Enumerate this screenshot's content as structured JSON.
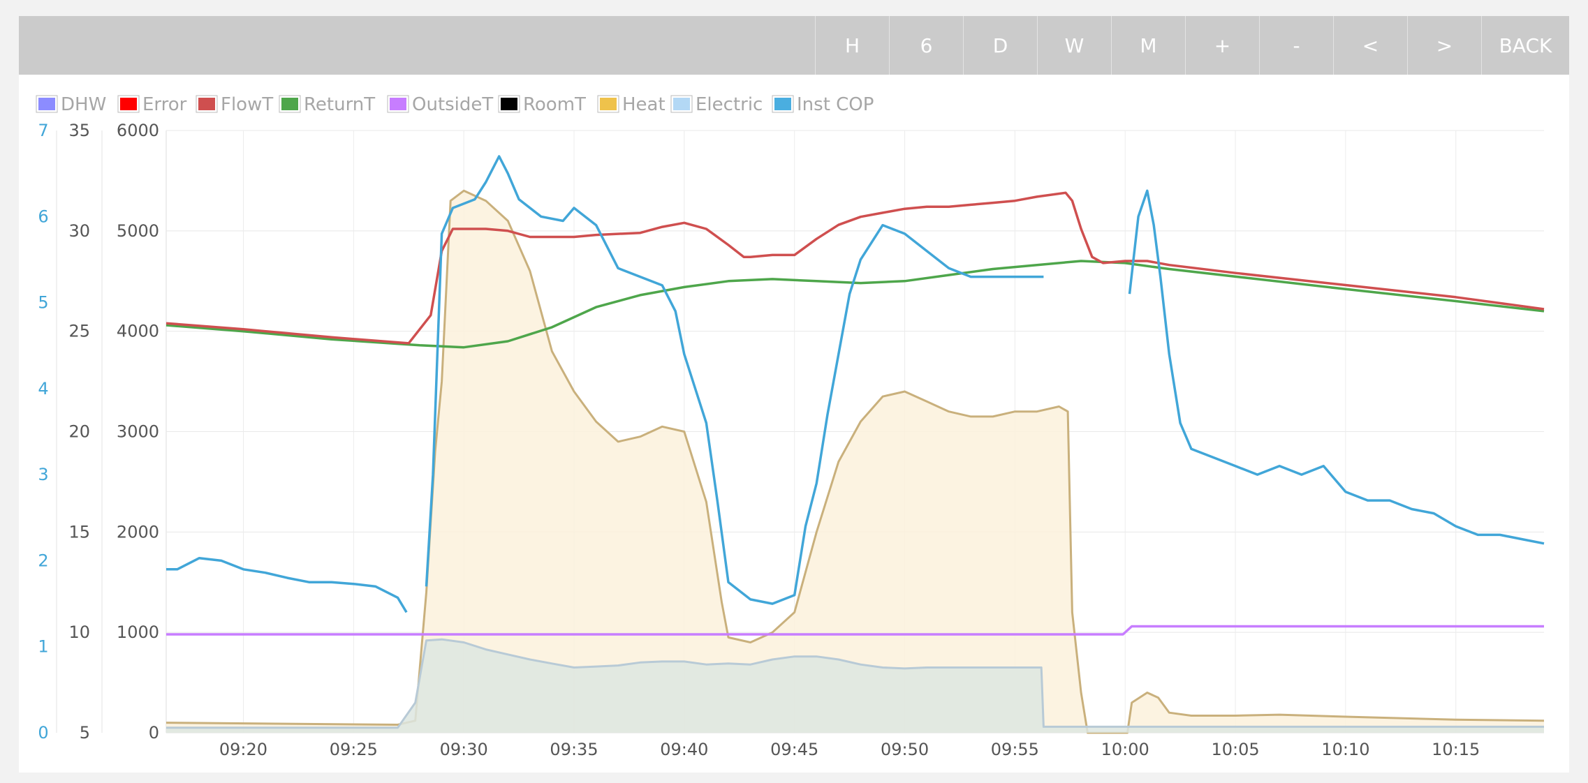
{
  "toolbar": {
    "buttons": [
      "H",
      "6",
      "D",
      "W",
      "M",
      "+",
      "-",
      "<",
      ">",
      "BACK"
    ]
  },
  "legend": [
    {
      "name": "DHW",
      "color": "#8c8cff"
    },
    {
      "name": "Error",
      "color": "#ff0000"
    },
    {
      "name": "FlowT",
      "color": "#cf4f4f"
    },
    {
      "name": "ReturnT",
      "color": "#4ea64b"
    },
    {
      "name": "OutsideT",
      "color": "#c77dff"
    },
    {
      "name": "RoomT",
      "color": "#000000"
    },
    {
      "name": "Heat",
      "color": "#efc24b"
    },
    {
      "name": "Electric",
      "color": "#b3d8f5"
    },
    {
      "name": "Inst COP",
      "color": "#4aaee0"
    }
  ],
  "chart_data": {
    "type": "line",
    "x_unit": "minutes after 09:00",
    "x_range": [
      16.5,
      79
    ],
    "x_ticks": [
      "09:20",
      "09:25",
      "09:30",
      "09:35",
      "09:40",
      "09:45",
      "09:50",
      "09:55",
      "10:00",
      "10:05",
      "10:10",
      "10:15"
    ],
    "axes": {
      "cop": {
        "range": [
          0,
          7
        ],
        "ticks": [
          "0",
          "1",
          "2",
          "3",
          "4",
          "5",
          "6",
          "7"
        ]
      },
      "temperature": {
        "range": [
          5,
          35
        ],
        "ticks": [
          "5",
          "10",
          "15",
          "20",
          "25",
          "30",
          "35"
        ]
      },
      "power": {
        "range": [
          0,
          6000
        ],
        "ticks": [
          "0",
          "1000",
          "2000",
          "3000",
          "4000",
          "5000",
          "6000"
        ]
      }
    },
    "grid": true,
    "legend_position": "top-left",
    "series": [
      {
        "name": "Heat",
        "axis": "power",
        "type": "area",
        "color": "#c9b07c",
        "fill": "#fbf1dc",
        "points": [
          [
            16.5,
            100
          ],
          [
            27,
            80
          ],
          [
            27.8,
            120
          ],
          [
            28.3,
            1400
          ],
          [
            28.7,
            2800
          ],
          [
            29,
            3500
          ],
          [
            29.4,
            5300
          ],
          [
            30,
            5400
          ],
          [
            31,
            5300
          ],
          [
            32,
            5100
          ],
          [
            33,
            4600
          ],
          [
            34,
            3800
          ],
          [
            35,
            3400
          ],
          [
            36,
            3100
          ],
          [
            37,
            2900
          ],
          [
            38,
            2950
          ],
          [
            39,
            3050
          ],
          [
            40,
            3000
          ],
          [
            41,
            2300
          ],
          [
            41.7,
            1300
          ],
          [
            42,
            950
          ],
          [
            43,
            900
          ],
          [
            44,
            1000
          ],
          [
            45,
            1200
          ],
          [
            46,
            2000
          ],
          [
            47,
            2700
          ],
          [
            48,
            3100
          ],
          [
            49,
            3350
          ],
          [
            50,
            3400
          ],
          [
            51,
            3300
          ],
          [
            52,
            3200
          ],
          [
            53,
            3150
          ],
          [
            54,
            3150
          ],
          [
            55,
            3200
          ],
          [
            56,
            3200
          ],
          [
            57,
            3250
          ],
          [
            57.4,
            3200
          ],
          [
            57.6,
            1200
          ],
          [
            58,
            400
          ],
          [
            58.3,
            0
          ],
          [
            60.1,
            0
          ],
          [
            60.3,
            300
          ],
          [
            61,
            400
          ],
          [
            61.5,
            350
          ],
          [
            62,
            200
          ],
          [
            63,
            170
          ],
          [
            65,
            170
          ],
          [
            67,
            180
          ],
          [
            70,
            160
          ],
          [
            75,
            130
          ],
          [
            79,
            120
          ]
        ]
      },
      {
        "name": "Electric",
        "axis": "power",
        "type": "area",
        "color": "#b8cad6",
        "fill": "#dde6e0",
        "points": [
          [
            16.5,
            50
          ],
          [
            27,
            50
          ],
          [
            27.8,
            300
          ],
          [
            28.3,
            920
          ],
          [
            29,
            930
          ],
          [
            30,
            900
          ],
          [
            31,
            830
          ],
          [
            32,
            780
          ],
          [
            33,
            730
          ],
          [
            34,
            690
          ],
          [
            35,
            650
          ],
          [
            36,
            660
          ],
          [
            37,
            670
          ],
          [
            38,
            700
          ],
          [
            39,
            710
          ],
          [
            40,
            710
          ],
          [
            41,
            680
          ],
          [
            42,
            690
          ],
          [
            43,
            680
          ],
          [
            44,
            730
          ],
          [
            45,
            760
          ],
          [
            46,
            760
          ],
          [
            47,
            730
          ],
          [
            48,
            680
          ],
          [
            49,
            650
          ],
          [
            50,
            640
          ],
          [
            51,
            650
          ],
          [
            52,
            650
          ],
          [
            53,
            650
          ],
          [
            54,
            650
          ],
          [
            55,
            650
          ],
          [
            56.2,
            650
          ],
          [
            56.3,
            60
          ],
          [
            60,
            60
          ],
          [
            79,
            60
          ]
        ]
      },
      {
        "name": "OutsideT",
        "axis": "temperature",
        "type": "line",
        "color": "#c77dff",
        "points": [
          [
            16.5,
            9.9
          ],
          [
            59.9,
            9.9
          ],
          [
            60.3,
            10.3
          ],
          [
            79,
            10.3
          ]
        ]
      },
      {
        "name": "ReturnT",
        "axis": "temperature",
        "type": "line",
        "color": "#4ea64b",
        "points": [
          [
            16.5,
            25.3
          ],
          [
            20,
            25
          ],
          [
            24,
            24.6
          ],
          [
            28,
            24.3
          ],
          [
            30,
            24.2
          ],
          [
            32,
            24.5
          ],
          [
            34,
            25.2
          ],
          [
            36,
            26.2
          ],
          [
            38,
            26.8
          ],
          [
            40,
            27.2
          ],
          [
            42,
            27.5
          ],
          [
            44,
            27.6
          ],
          [
            46,
            27.5
          ],
          [
            48,
            27.4
          ],
          [
            50,
            27.5
          ],
          [
            52,
            27.8
          ],
          [
            54,
            28.1
          ],
          [
            56,
            28.3
          ],
          [
            58,
            28.5
          ],
          [
            60,
            28.4
          ],
          [
            62,
            28.1
          ],
          [
            66,
            27.6
          ],
          [
            70,
            27.1
          ],
          [
            75,
            26.5
          ],
          [
            79,
            26
          ]
        ]
      },
      {
        "name": "FlowT",
        "axis": "temperature",
        "type": "line",
        "color": "#cf4f4f",
        "points": [
          [
            16.5,
            25.4
          ],
          [
            20,
            25.1
          ],
          [
            24,
            24.7
          ],
          [
            27.5,
            24.4
          ],
          [
            28.5,
            25.8
          ],
          [
            29,
            29
          ],
          [
            29.5,
            30.1
          ],
          [
            31,
            30.1
          ],
          [
            32,
            30
          ],
          [
            33,
            29.7
          ],
          [
            35,
            29.7
          ],
          [
            36,
            29.8
          ],
          [
            38,
            29.9
          ],
          [
            39,
            30.2
          ],
          [
            40,
            30.4
          ],
          [
            41,
            30.1
          ],
          [
            42,
            29.3
          ],
          [
            42.7,
            28.7
          ],
          [
            43,
            28.7
          ],
          [
            44,
            28.8
          ],
          [
            45,
            28.8
          ],
          [
            46,
            29.6
          ],
          [
            47,
            30.3
          ],
          [
            48,
            30.7
          ],
          [
            49,
            30.9
          ],
          [
            50,
            31.1
          ],
          [
            51,
            31.2
          ],
          [
            52,
            31.2
          ],
          [
            53,
            31.3
          ],
          [
            54,
            31.4
          ],
          [
            55,
            31.5
          ],
          [
            56,
            31.7
          ],
          [
            57.3,
            31.9
          ],
          [
            57.6,
            31.5
          ],
          [
            58,
            30.1
          ],
          [
            58.5,
            28.7
          ],
          [
            59,
            28.4
          ],
          [
            60,
            28.5
          ],
          [
            61,
            28.5
          ],
          [
            62,
            28.3
          ],
          [
            65,
            27.9
          ],
          [
            70,
            27.3
          ],
          [
            75,
            26.7
          ],
          [
            79,
            26.1
          ]
        ]
      },
      {
        "name": "Inst COP",
        "axis": "cop",
        "type": "line",
        "color": "#41a6d8",
        "segments": [
          [
            [
              16.5,
              1.9
            ],
            [
              17,
              1.9
            ],
            [
              18,
              2.03
            ],
            [
              19,
              2.0
            ],
            [
              20,
              1.9
            ],
            [
              21,
              1.86
            ],
            [
              22,
              1.8
            ],
            [
              23,
              1.75
            ],
            [
              24,
              1.75
            ],
            [
              25,
              1.73
            ],
            [
              26,
              1.7
            ],
            [
              27,
              1.57
            ],
            [
              27.4,
              1.4
            ]
          ],
          [
            [
              28.3,
              1.7
            ],
            [
              28.6,
              3.0
            ],
            [
              29,
              5.8
            ],
            [
              29.5,
              6.1
            ],
            [
              30.5,
              6.2
            ],
            [
              31,
              6.4
            ],
            [
              31.6,
              6.7
            ],
            [
              32,
              6.5
            ],
            [
              32.5,
              6.2
            ],
            [
              33.5,
              6.0
            ],
            [
              34.5,
              5.95
            ],
            [
              35,
              6.1
            ],
            [
              36,
              5.9
            ],
            [
              37,
              5.4
            ],
            [
              38,
              5.3
            ],
            [
              39,
              5.2
            ],
            [
              39.6,
              4.9
            ],
            [
              40,
              4.4
            ],
            [
              40.5,
              4.0
            ],
            [
              41,
              3.6
            ],
            [
              41.5,
              2.7
            ],
            [
              42,
              1.75
            ],
            [
              43,
              1.55
            ],
            [
              44,
              1.5
            ],
            [
              45,
              1.6
            ],
            [
              45.5,
              2.4
            ],
            [
              46,
              2.9
            ],
            [
              46.5,
              3.7
            ],
            [
              47,
              4.4
            ],
            [
              47.5,
              5.1
            ],
            [
              48,
              5.5
            ],
            [
              49,
              5.9
            ],
            [
              50,
              5.8
            ],
            [
              51,
              5.6
            ],
            [
              52,
              5.4
            ],
            [
              53,
              5.3
            ],
            [
              54,
              5.3
            ],
            [
              55,
              5.3
            ],
            [
              56.3,
              5.3
            ]
          ],
          [
            [
              60.2,
              5.1
            ],
            [
              60.6,
              6.0
            ],
            [
              61,
              6.3
            ],
            [
              61.3,
              5.9
            ],
            [
              61.6,
              5.3
            ],
            [
              62,
              4.4
            ],
            [
              62.5,
              3.6
            ],
            [
              63,
              3.3
            ],
            [
              64,
              3.2
            ],
            [
              65,
              3.1
            ],
            [
              66,
              3.0
            ],
            [
              67,
              3.1
            ],
            [
              68,
              3.0
            ],
            [
              69,
              3.1
            ],
            [
              70,
              2.8
            ],
            [
              71,
              2.7
            ],
            [
              72,
              2.7
            ],
            [
              73,
              2.6
            ],
            [
              74,
              2.55
            ],
            [
              75,
              2.4
            ],
            [
              76,
              2.3
            ],
            [
              77,
              2.3
            ],
            [
              78,
              2.25
            ],
            [
              79,
              2.2
            ]
          ]
        ]
      }
    ]
  }
}
